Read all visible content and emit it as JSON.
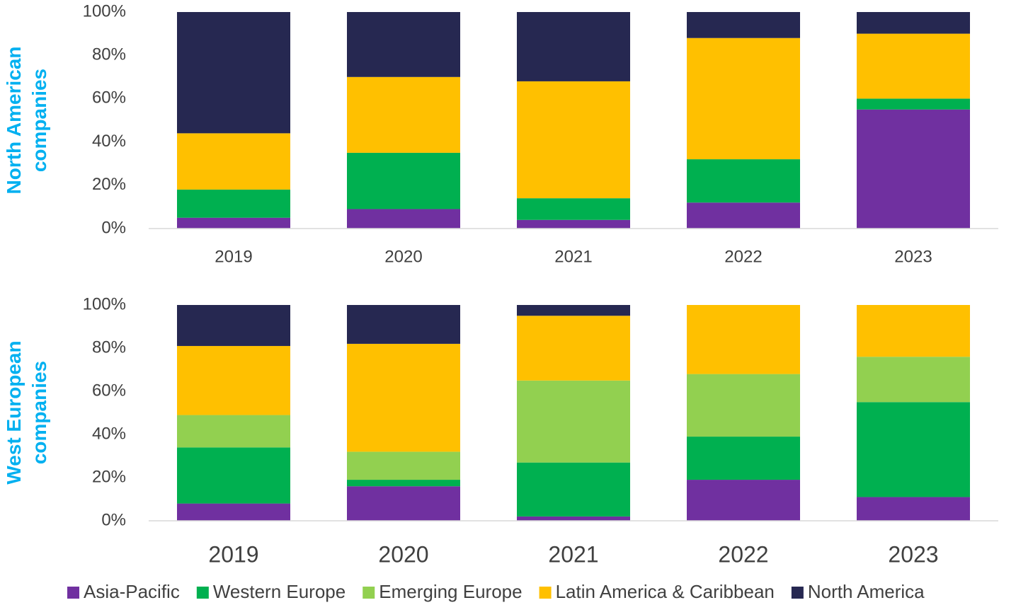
{
  "chart_data": [
    {
      "type": "stacked_bar",
      "ylabel": [
        "North American",
        "companies"
      ],
      "categories": [
        "2019",
        "2020",
        "2021",
        "2022",
        "2023"
      ],
      "series": [
        {
          "name": "Asia-Pacific",
          "color": "#7030a0",
          "values": [
            5,
            9,
            4,
            12,
            55
          ]
        },
        {
          "name": "Western Europe",
          "color": "#00b050",
          "values": [
            13,
            26,
            10,
            20,
            5
          ]
        },
        {
          "name": "Emerging Europe",
          "color": "#92d050",
          "values": [
            0,
            0,
            0,
            0,
            0
          ]
        },
        {
          "name": "Latin America & Caribbean",
          "color": "#ffc000",
          "values": [
            26,
            35,
            54,
            56,
            30
          ]
        },
        {
          "name": "North America",
          "color": "#262851",
          "values": [
            56,
            30,
            32,
            12,
            10
          ]
        }
      ],
      "ylim": [
        0,
        100
      ],
      "yticks": [
        {
          "value": 0,
          "label": "0%"
        },
        {
          "value": 20,
          "label": "20%"
        },
        {
          "value": 40,
          "label": "40%"
        },
        {
          "value": 60,
          "label": "60%"
        },
        {
          "value": 80,
          "label": "80%"
        },
        {
          "value": 100,
          "label": "100%"
        }
      ]
    },
    {
      "type": "stacked_bar",
      "ylabel": [
        "West European",
        "companies"
      ],
      "categories": [
        "2019",
        "2020",
        "2021",
        "2022",
        "2023"
      ],
      "series": [
        {
          "name": "Asia-Pacific",
          "color": "#7030a0",
          "values": [
            8,
            16,
            2,
            19,
            11
          ]
        },
        {
          "name": "Western Europe",
          "color": "#00b050",
          "values": [
            26,
            3,
            25,
            20,
            44
          ]
        },
        {
          "name": "Emerging Europe",
          "color": "#92d050",
          "values": [
            15,
            13,
            38,
            29,
            21
          ]
        },
        {
          "name": "Latin America & Caribbean",
          "color": "#ffc000",
          "values": [
            32,
            50,
            30,
            32,
            24
          ]
        },
        {
          "name": "North America",
          "color": "#262851",
          "values": [
            19,
            18,
            5,
            0,
            0
          ]
        }
      ],
      "ylim": [
        0,
        100
      ],
      "yticks": [
        {
          "value": 0,
          "label": "0%"
        },
        {
          "value": 20,
          "label": "20%"
        },
        {
          "value": 40,
          "label": "40%"
        },
        {
          "value": 60,
          "label": "60%"
        },
        {
          "value": 80,
          "label": "80%"
        },
        {
          "value": 100,
          "label": "100%"
        }
      ],
      "legend": "bottom"
    }
  ]
}
